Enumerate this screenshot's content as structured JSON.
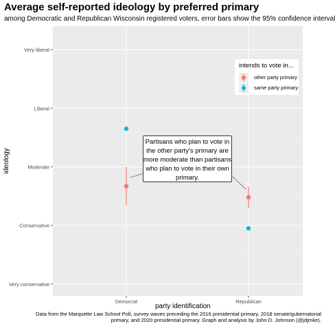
{
  "chart_data": {
    "type": "scatter",
    "title": "Average self-reported ideology by preferred primary",
    "subtitle": "among Democratic and Republican Wisconsin registered voters, error bars show the 95% confidence interval",
    "xlabel": "party identification",
    "ylabel": "ideology",
    "categories": [
      "Democrat",
      "Republican"
    ],
    "y_ticks": [
      {
        "value": 1,
        "label": "Very conservative"
      },
      {
        "value": 2,
        "label": "Conservative"
      },
      {
        "value": 3,
        "label": "Moderate"
      },
      {
        "value": 4,
        "label": "Liberal"
      },
      {
        "value": 5,
        "label": "Very liberal"
      }
    ],
    "ylim": [
      0.8,
      5.4
    ],
    "grid": true,
    "legend": {
      "title": "intends to vote in...",
      "placement": "right-inside"
    },
    "series": [
      {
        "name": "other party primary",
        "color": "#F8766D",
        "points": [
          {
            "x": "Democrat",
            "y": 2.67,
            "low": 2.35,
            "high": 3.0
          },
          {
            "x": "Republican",
            "y": 2.48,
            "low": 2.29,
            "high": 2.66
          }
        ]
      },
      {
        "name": "same party primary",
        "color": "#00BFC4",
        "points": [
          {
            "x": "Democrat",
            "y": 3.65,
            "low": 3.63,
            "high": 3.67
          },
          {
            "x": "Republican",
            "y": 1.95,
            "low": 1.93,
            "high": 1.97
          }
        ]
      }
    ],
    "annotation": {
      "lines": [
        "Partisans who plan to vote in",
        "the other party's primary are",
        "more moderate than partisans",
        "who plan to vote in their own",
        "primary."
      ]
    }
  },
  "caption": {
    "line1": "Data from the Marquette Law School Poll, survey waves preceding the 2016 presidential primary, 2018 senate/gubernatorial",
    "line2": "primary, and 2020 presidential primary. Graph and analysis by John D. Johnson (@jdjmke)."
  }
}
